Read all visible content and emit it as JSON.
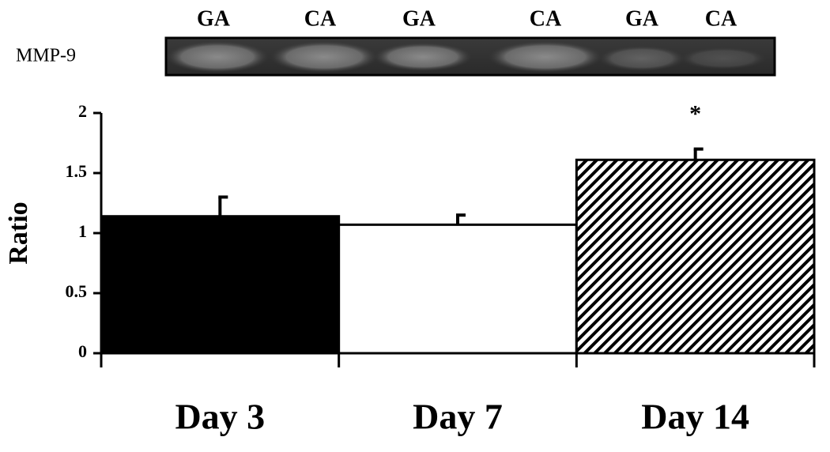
{
  "chart_data": {
    "type": "bar",
    "blot": {
      "label": "MMP-9",
      "lanes": [
        "GA",
        "CA",
        "GA",
        "CA",
        "GA",
        "CA"
      ]
    },
    "ylabel": "Ratio",
    "categories": [
      "Day 3",
      "Day 7",
      "Day 14"
    ],
    "values": [
      1.14,
      1.07,
      1.61
    ],
    "errors": [
      0.16,
      0.08,
      0.09
    ],
    "colors": [
      "#000000",
      "#ffffff",
      "#000000"
    ],
    "patterns": [
      null,
      null,
      "diagonal-hatch"
    ],
    "annotations": [
      {
        "text": "*",
        "x": "Day 14"
      }
    ],
    "ylim": [
      0,
      2
    ],
    "yticks": [
      0,
      0.5,
      1,
      1.5,
      2
    ]
  }
}
